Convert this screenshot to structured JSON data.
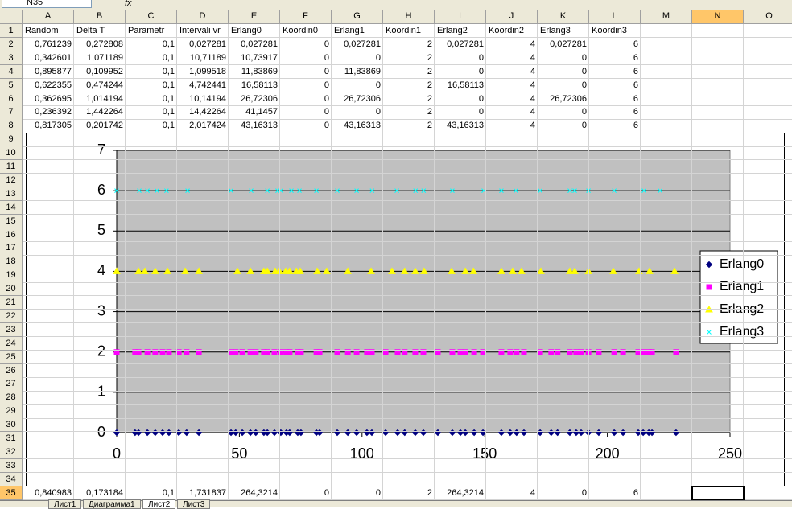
{
  "name_box": "N35",
  "formula_icon": "fx",
  "table": {
    "columns": [
      "A",
      "B",
      "C",
      "D",
      "E",
      "F",
      "G",
      "H",
      "I",
      "J",
      "K",
      "L",
      "M",
      "N",
      "O"
    ],
    "row_numbers": [
      1,
      2,
      3,
      4,
      5,
      6,
      7,
      8,
      9,
      10,
      11,
      12,
      13,
      14,
      15,
      16,
      17,
      18,
      19,
      20,
      21,
      22,
      23,
      24,
      25,
      26,
      27,
      28,
      29,
      30,
      31,
      32,
      33,
      34,
      35
    ],
    "top_rows": [
      [
        "Random",
        "Delta T",
        "Parametr",
        "Intervali vr",
        "Erlang0",
        "Koordin0",
        "Erlang1",
        "Koordin1",
        "Erlang2",
        "Koordin2",
        "Erlang3",
        "Koordin3"
      ],
      [
        "0,761239",
        "0,272808",
        "0,1",
        "0,027281",
        "0,027281",
        "0",
        "0,027281",
        "2",
        "0,027281",
        "4",
        "0,027281",
        "6"
      ],
      [
        "0,342601",
        "1,071189",
        "0,1",
        "10,71189",
        "10,73917",
        "0",
        "0",
        "2",
        "0",
        "4",
        "0",
        "6"
      ],
      [
        "0,895877",
        "0,109952",
        "0,1",
        "1,099518",
        "11,83869",
        "0",
        "11,83869",
        "2",
        "0",
        "4",
        "0",
        "6"
      ],
      [
        "0,622355",
        "0,474244",
        "0,1",
        "4,742441",
        "16,58113",
        "0",
        "0",
        "2",
        "16,58113",
        "4",
        "0",
        "6"
      ],
      [
        "0,362695",
        "1,014194",
        "0,1",
        "10,14194",
        "26,72306",
        "0",
        "26,72306",
        "2",
        "0",
        "4",
        "26,72306",
        "6"
      ],
      [
        "0,236392",
        "1,442264",
        "0,1",
        "14,42264",
        "41,1457",
        "0",
        "0",
        "2",
        "0",
        "4",
        "0",
        "6"
      ],
      [
        "0,817305",
        "0,201742",
        "0,1",
        "2,017424",
        "43,16313",
        "0",
        "43,16313",
        "2",
        "43,16313",
        "4",
        "0",
        "6"
      ]
    ],
    "bottom_row": [
      "0,840983",
      "0,173184",
      "0,1",
      "1,731837",
      "264,3214",
      "0",
      "0",
      "2",
      "264,3214",
      "4",
      "0",
      "6"
    ]
  },
  "sheet_tabs": [
    "Лист1",
    "Диаграмма1",
    "Лист2",
    "Лист3"
  ],
  "chart_data": {
    "type": "scatter",
    "xlim": [
      0,
      250
    ],
    "xticks": [
      0,
      50,
      100,
      150,
      200,
      250
    ],
    "ylim": [
      0,
      7
    ],
    "yticks": [
      0,
      1,
      2,
      3,
      4,
      5,
      6,
      7
    ],
    "grid": true,
    "legend": "right",
    "series": [
      {
        "name": "Erlang0",
        "color": "#000080",
        "marker": "diamond",
        "x": [
          0,
          7.5,
          8.9,
          12.5,
          15.7,
          18.7,
          21.3,
          25.3,
          28.5,
          33.5,
          46.6,
          48.5,
          51.2,
          54.5,
          56.7,
          60.0,
          61.4,
          64.3,
          66.9,
          69.2,
          70.5,
          73.8,
          75.1,
          81.4,
          82.7,
          89.9,
          94.2,
          97.8,
          102.0,
          104.0,
          109.6,
          114.5,
          117.4,
          121.7,
          125.0,
          130.9,
          136.8,
          140.1,
          142.1,
          145.7,
          149.3,
          156.8,
          160.4,
          163.0,
          166.0,
          172.6,
          177.1,
          179.7,
          184.7,
          187.3,
          189.3,
          192.3,
          196.5,
          202.8,
          206.4,
          212.6,
          214.6,
          216.9,
          218.2,
          228.0
        ],
        "values": [
          0,
          0,
          0,
          0,
          0,
          0,
          0,
          0,
          0,
          0,
          0,
          0,
          0,
          0,
          0,
          0,
          0,
          0,
          0,
          0,
          0,
          0,
          0,
          0,
          0,
          0,
          0,
          0,
          0,
          0,
          0,
          0,
          0,
          0,
          0,
          0,
          0,
          0,
          0,
          0,
          0,
          0,
          0,
          0,
          0,
          0,
          0,
          0,
          0,
          0,
          0,
          0,
          0,
          0,
          0,
          0,
          0,
          0,
          0,
          0
        ]
      },
      {
        "name": "Erlang1",
        "color": "#ff00ff",
        "marker": "square",
        "x": [
          0,
          7.5,
          8.9,
          12.5,
          15.7,
          18.7,
          21.3,
          25.3,
          28.5,
          33.5,
          46.6,
          48.5,
          51.2,
          54.5,
          56.7,
          60.0,
          61.4,
          64.3,
          66.9,
          69.2,
          70.5,
          73.8,
          75.1,
          81.4,
          82.7,
          89.9,
          94.2,
          97.8,
          102.0,
          104.0,
          109.6,
          114.5,
          117.4,
          121.7,
          125.0,
          130.9,
          136.8,
          140.1,
          142.1,
          145.7,
          149.3,
          156.8,
          160.4,
          163.0,
          166.0,
          172.6,
          177.1,
          179.7,
          184.7,
          187.3,
          189.3,
          192.3,
          196.5,
          202.8,
          206.4,
          212.6,
          214.6,
          216.9,
          218.2,
          228.0
        ],
        "values": [
          2,
          2,
          2,
          2,
          2,
          2,
          2,
          2,
          2,
          2,
          2,
          2,
          2,
          2,
          2,
          2,
          2,
          2,
          2,
          2,
          2,
          2,
          2,
          2,
          2,
          2,
          2,
          2,
          2,
          2,
          2,
          2,
          2,
          2,
          2,
          2,
          2,
          2,
          2,
          2,
          2,
          2,
          2,
          2,
          2,
          2,
          2,
          2,
          2,
          2,
          2,
          2,
          2,
          2,
          2,
          2,
          2,
          2,
          2,
          2
        ]
      },
      {
        "name": "Erlang2",
        "color": "#ffff00",
        "marker": "triangle",
        "x": [
          0,
          8.9,
          11.5,
          15.7,
          20.7,
          27.9,
          33.5,
          49.2,
          54.5,
          60.0,
          61.4,
          64.6,
          66.3,
          68.9,
          70.5,
          73.2,
          74.8,
          81.7,
          85.6,
          94.2,
          103.7,
          112.2,
          117.4,
          121.7,
          125.3,
          136.5,
          142.1,
          145.4,
          156.8,
          161.4,
          165.0,
          172.9,
          184.7,
          186.7,
          192.3,
          202.4,
          212.9,
          217.2,
          227.4
        ],
        "values": [
          4,
          4,
          4,
          4,
          4,
          4,
          4,
          4,
          4,
          4,
          4,
          4,
          4,
          4,
          4,
          4,
          4,
          4,
          4,
          4,
          4,
          4,
          4,
          4,
          4,
          4,
          4,
          4,
          4,
          4,
          4,
          4,
          4,
          4,
          4,
          4,
          4,
          4,
          4
        ]
      },
      {
        "name": "Erlang3",
        "color": "#00ffff",
        "marker": "cross",
        "x": [
          0,
          9.2,
          12.5,
          16.4,
          20.3,
          28.9,
          46.6,
          54.8,
          61.4,
          65.6,
          66.9,
          71.2,
          74.5,
          81.4,
          89.9,
          97.8,
          104.1,
          114.2,
          121.8,
          125.1,
          136.8,
          149.6,
          156.8,
          162.7,
          172.6,
          184.7,
          186.7,
          192.3,
          202.8,
          214.9,
          221.5
        ],
        "values": [
          6,
          6,
          6,
          6,
          6,
          6,
          6,
          6,
          6,
          6,
          6,
          6,
          6,
          6,
          6,
          6,
          6,
          6,
          6,
          6,
          6,
          6,
          6,
          6,
          6,
          6,
          6,
          6,
          6,
          6,
          6
        ]
      }
    ]
  }
}
